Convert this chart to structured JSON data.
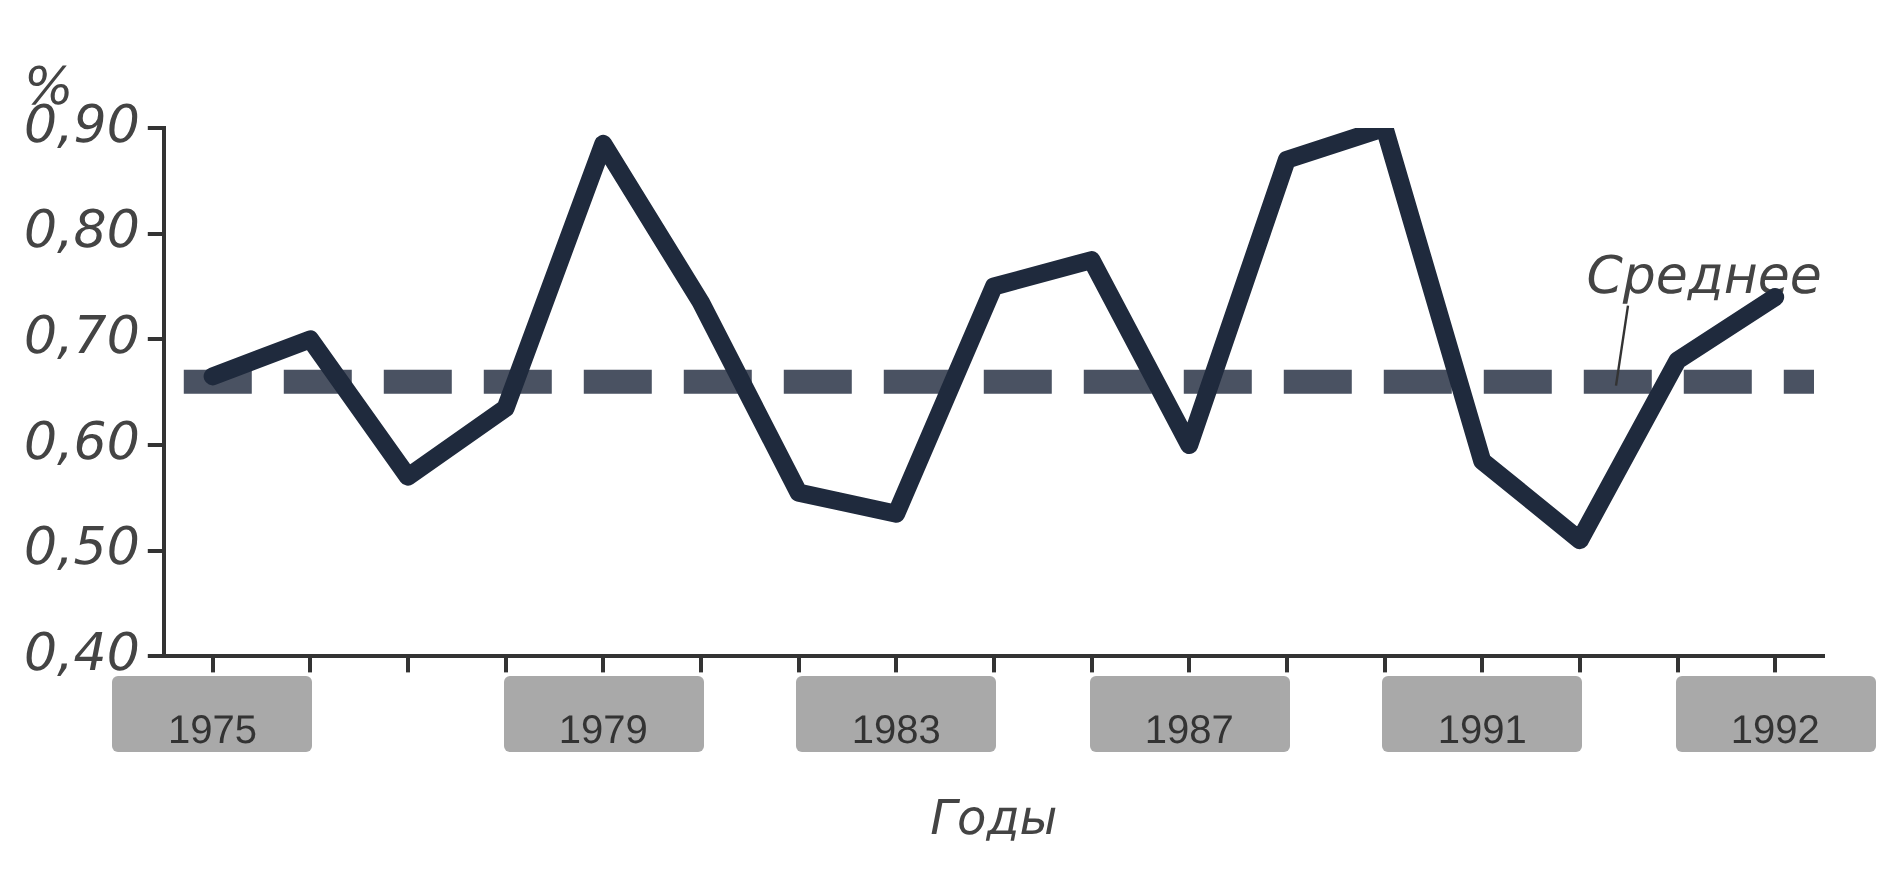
{
  "chart_data": {
    "type": "line",
    "ylabel": "%",
    "xlabel": "Годы",
    "categories": [
      "1975",
      null,
      null,
      null,
      "1979",
      null,
      null,
      "1983",
      null,
      null,
      "1987",
      null,
      null,
      "1991",
      null,
      null,
      "1992"
    ],
    "series": [
      {
        "color": "#1f2a3d",
        "values": [
          0.665,
          0.7,
          0.57,
          0.635,
          0.885,
          0.735,
          0.555,
          0.535,
          0.75,
          0.775,
          0.6,
          0.87,
          0.9,
          0.585,
          0.51,
          0.68,
          0.74
        ]
      }
    ],
    "ylim": [
      0.4,
      0.9
    ],
    "yticks": [
      {
        "value": 0.4,
        "label": "0,40"
      },
      {
        "value": 0.5,
        "label": "0,50"
      },
      {
        "value": 0.6,
        "label": "0,60"
      },
      {
        "value": 0.7,
        "label": "0,70"
      },
      {
        "value": 0.8,
        "label": "0,80"
      },
      {
        "value": 0.9,
        "label": "0,90"
      }
    ],
    "ref_lines": [
      {
        "axis": "y",
        "value": 0.66,
        "label": "Среднее",
        "color": "#4a5262",
        "line_style": "dashed"
      }
    ],
    "grid": false,
    "legend": false,
    "marker": "none",
    "line_style": "solid"
  }
}
